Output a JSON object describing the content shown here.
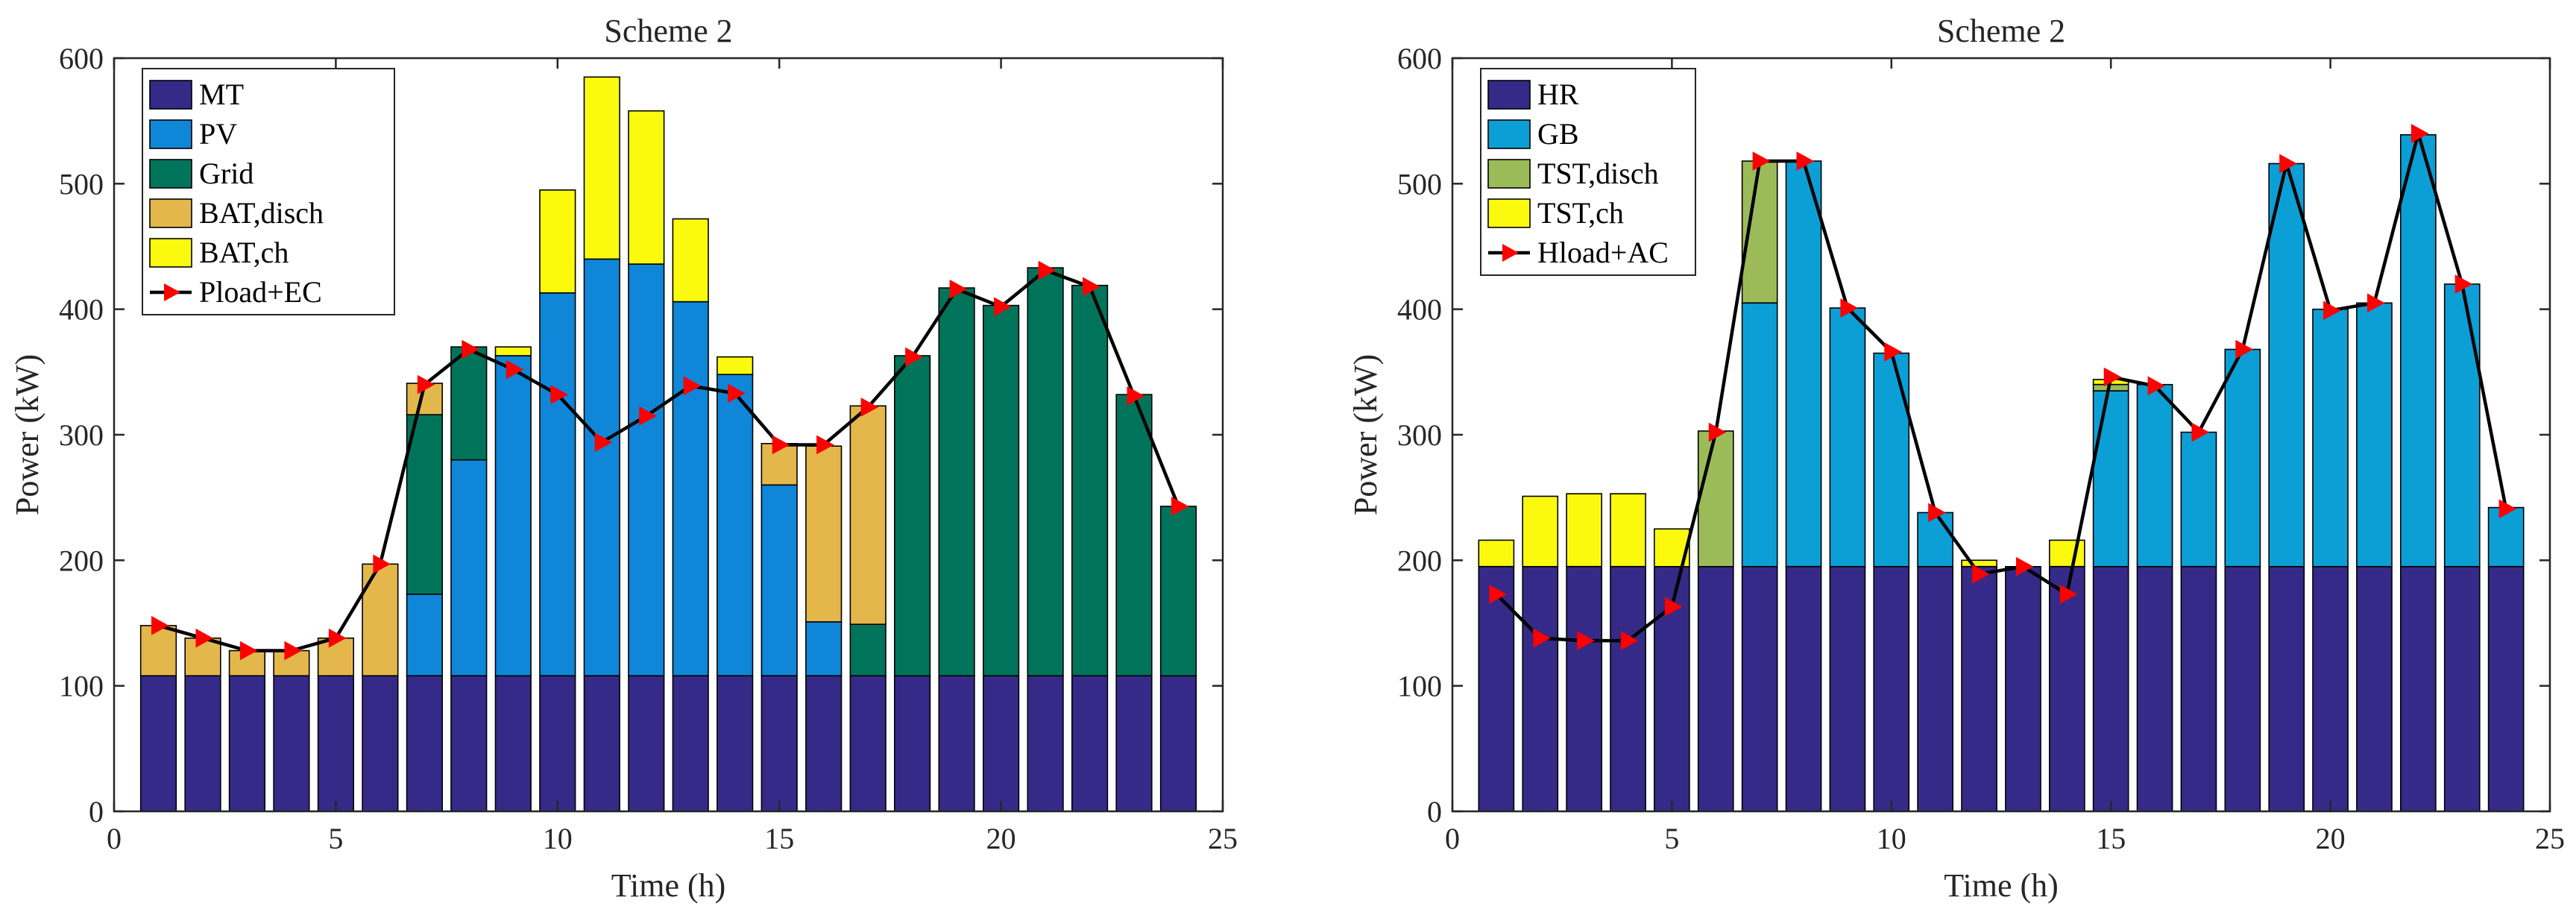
{
  "chart_data": [
    {
      "type": "bar",
      "stacked": true,
      "title": "Scheme 2",
      "xlabel": "Time (h)",
      "ylabel": "Power (kW)",
      "xlim": [
        0,
        25
      ],
      "ylim": [
        0,
        600
      ],
      "xticks": [
        "0",
        "5",
        "10",
        "15",
        "20",
        "25"
      ],
      "yticks": [
        "0",
        "100",
        "200",
        "300",
        "400",
        "500",
        "600"
      ],
      "legend_position": "top-left",
      "x": [
        1,
        2,
        3,
        4,
        5,
        6,
        7,
        8,
        9,
        10,
        11,
        12,
        13,
        14,
        15,
        16,
        17,
        18,
        19,
        20,
        21,
        22,
        23,
        24
      ],
      "series": [
        {
          "name": "MT",
          "color": "#352a87",
          "values": [
            108,
            108,
            108,
            108,
            108,
            108,
            108,
            108,
            108,
            108,
            108,
            108,
            108,
            108,
            108,
            108,
            108,
            108,
            108,
            108,
            108,
            108,
            108,
            108
          ]
        },
        {
          "name": "PV",
          "color": "#0f86d8",
          "values": [
            0,
            0,
            0,
            0,
            0,
            0,
            65,
            172,
            255,
            305,
            332,
            328,
            298,
            240,
            152,
            43,
            0,
            0,
            0,
            0,
            0,
            0,
            0,
            0
          ]
        },
        {
          "name": "Grid",
          "color": "#00745b",
          "values": [
            0,
            0,
            0,
            0,
            0,
            0,
            143,
            90,
            0,
            0,
            0,
            0,
            0,
            0,
            0,
            0,
            41,
            255,
            309,
            295,
            325,
            311,
            224,
            135
          ]
        },
        {
          "name": "BAT,disch",
          "color": "#e3b74b",
          "values": [
            40,
            30,
            20,
            20,
            30,
            89,
            25,
            0,
            0,
            0,
            0,
            0,
            0,
            0,
            33,
            140,
            174,
            0,
            0,
            0,
            0,
            0,
            0,
            0
          ]
        },
        {
          "name": "BAT,ch",
          "color": "#fbfa0e",
          "values": [
            0,
            0,
            0,
            0,
            0,
            0,
            0,
            0,
            7,
            82,
            145,
            122,
            66,
            14,
            0,
            0,
            0,
            0,
            0,
            0,
            0,
            0,
            0,
            0
          ]
        }
      ],
      "line_series": {
        "name": "Pload+EC",
        "color": "#000000",
        "marker_color": "#ff0000",
        "values": [
          148,
          138,
          128,
          128,
          138,
          197,
          340,
          368,
          352,
          332,
          294,
          315,
          339,
          333,
          292,
          292,
          322,
          362,
          416,
          402,
          431,
          418,
          331,
          243
        ]
      }
    },
    {
      "type": "bar",
      "stacked": true,
      "title": "Scheme 2",
      "xlabel": "Time (h)",
      "ylabel": "Power (kW)",
      "xlim": [
        0,
        25
      ],
      "ylim": [
        0,
        600
      ],
      "xticks": [
        "0",
        "5",
        "10",
        "15",
        "20",
        "25"
      ],
      "yticks": [
        "0",
        "100",
        "200",
        "300",
        "400",
        "500",
        "600"
      ],
      "legend_position": "top-left",
      "x": [
        1,
        2,
        3,
        4,
        5,
        6,
        7,
        8,
        9,
        10,
        11,
        12,
        13,
        14,
        15,
        16,
        17,
        18,
        19,
        20,
        21,
        22,
        23,
        24
      ],
      "series": [
        {
          "name": "HR",
          "color": "#352a87",
          "values": [
            195,
            195,
            195,
            195,
            195,
            195,
            195,
            195,
            195,
            195,
            195,
            195,
            195,
            195,
            195,
            195,
            195,
            195,
            195,
            195,
            195,
            195,
            195,
            195
          ]
        },
        {
          "name": "GB",
          "color": "#0c9fd6",
          "values": [
            0,
            0,
            0,
            0,
            0,
            0,
            210,
            323,
            206,
            170,
            43,
            0,
            0,
            0,
            140,
            145,
            107,
            173,
            321,
            205,
            210,
            344,
            225,
            47
          ]
        },
        {
          "name": "TST,disch",
          "color": "#9bbb59",
          "values": [
            0,
            0,
            0,
            0,
            0,
            108,
            113,
            0,
            0,
            0,
            0,
            0,
            0,
            0,
            5,
            0,
            0,
            0,
            0,
            0,
            0,
            0,
            0,
            0
          ]
        },
        {
          "name": "TST,ch",
          "color": "#fbfa0e",
          "values": [
            21,
            56,
            58,
            58,
            30,
            0,
            0,
            0,
            0,
            0,
            0,
            5,
            0,
            21,
            4,
            0,
            0,
            0,
            0,
            0,
            0,
            0,
            0,
            0
          ]
        }
      ],
      "line_series": {
        "name": "Hload+AC",
        "color": "#000000",
        "marker_color": "#ff0000",
        "values": [
          173,
          138,
          136,
          136,
          163,
          302,
          518,
          518,
          401,
          366,
          238,
          189,
          195,
          173,
          346,
          339,
          302,
          368,
          516,
          399,
          405,
          540,
          420,
          241
        ]
      }
    }
  ]
}
